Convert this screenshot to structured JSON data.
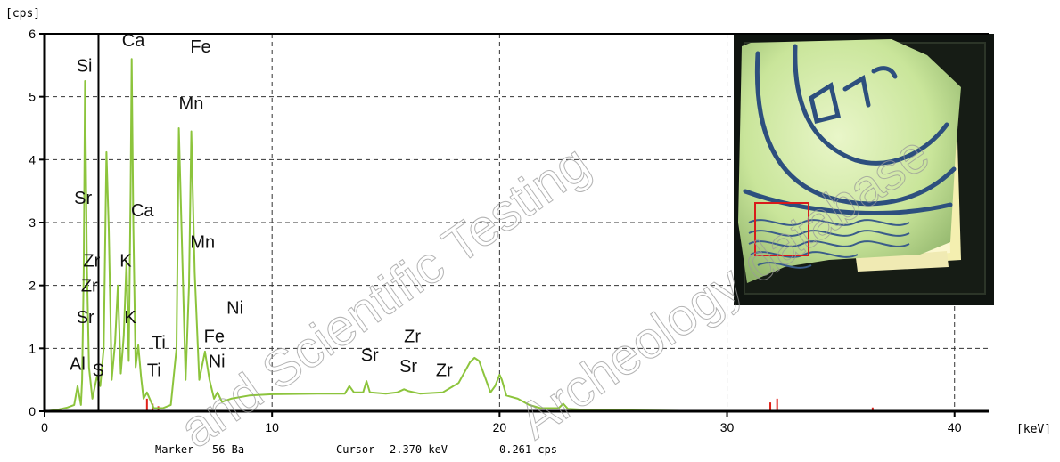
{
  "chart_data": {
    "type": "line",
    "xlabel": "[keV]",
    "ylabel": "[cps]",
    "xlim": [
      0,
      41.5
    ],
    "ylim": [
      0,
      6
    ],
    "x_ticks": [
      "0",
      "10",
      "20",
      "30",
      "40"
    ],
    "y_ticks": [
      "0",
      "1",
      "2",
      "3",
      "4",
      "5",
      "6"
    ],
    "grid": true,
    "series": [
      {
        "color": "#8cc43c",
        "points": [
          [
            0.0,
            0.0
          ],
          [
            0.5,
            0.02
          ],
          [
            1.0,
            0.06
          ],
          [
            1.3,
            0.1
          ],
          [
            1.45,
            0.4
          ],
          [
            1.6,
            0.1
          ],
          [
            1.65,
            0.5
          ],
          [
            1.72,
            2.2
          ],
          [
            1.78,
            5.25
          ],
          [
            1.86,
            2.3
          ],
          [
            1.95,
            0.7
          ],
          [
            2.1,
            0.2
          ],
          [
            2.3,
            0.55
          ],
          [
            2.45,
            0.4
          ],
          [
            2.6,
            1.0
          ],
          [
            2.72,
            4.12
          ],
          [
            2.82,
            2.9
          ],
          [
            2.95,
            0.5
          ],
          [
            3.1,
            1.1
          ],
          [
            3.22,
            2.0
          ],
          [
            3.35,
            0.6
          ],
          [
            3.48,
            1.2
          ],
          [
            3.6,
            2.4
          ],
          [
            3.7,
            0.8
          ],
          [
            3.78,
            3.5
          ],
          [
            3.83,
            5.6
          ],
          [
            3.9,
            3.0
          ],
          [
            4.0,
            0.7
          ],
          [
            4.12,
            1.05
          ],
          [
            4.24,
            0.55
          ],
          [
            4.35,
            0.2
          ],
          [
            4.5,
            0.3
          ],
          [
            4.8,
            0.05
          ],
          [
            5.2,
            0.05
          ],
          [
            5.55,
            0.1
          ],
          [
            5.8,
            1.0
          ],
          [
            5.9,
            4.5
          ],
          [
            6.05,
            2.5
          ],
          [
            6.2,
            0.5
          ],
          [
            6.35,
            2.0
          ],
          [
            6.45,
            4.45
          ],
          [
            6.6,
            2.2
          ],
          [
            6.8,
            0.5
          ],
          [
            7.05,
            0.95
          ],
          [
            7.25,
            0.5
          ],
          [
            7.45,
            0.2
          ],
          [
            7.6,
            0.3
          ],
          [
            7.8,
            0.15
          ],
          [
            8.2,
            0.2
          ],
          [
            9.0,
            0.25
          ],
          [
            10.0,
            0.27
          ],
          [
            12.0,
            0.28
          ],
          [
            13.2,
            0.28
          ],
          [
            13.4,
            0.4
          ],
          [
            13.6,
            0.3
          ],
          [
            14.0,
            0.3
          ],
          [
            14.15,
            0.48
          ],
          [
            14.3,
            0.3
          ],
          [
            15.0,
            0.28
          ],
          [
            15.5,
            0.3
          ],
          [
            15.8,
            0.35
          ],
          [
            16.0,
            0.32
          ],
          [
            16.5,
            0.28
          ],
          [
            17.5,
            0.3
          ],
          [
            18.2,
            0.45
          ],
          [
            18.7,
            0.78
          ],
          [
            18.9,
            0.85
          ],
          [
            19.1,
            0.8
          ],
          [
            19.4,
            0.5
          ],
          [
            19.6,
            0.3
          ],
          [
            19.8,
            0.4
          ],
          [
            20.0,
            0.58
          ],
          [
            20.1,
            0.5
          ],
          [
            20.3,
            0.25
          ],
          [
            20.8,
            0.2
          ],
          [
            21.3,
            0.1
          ],
          [
            21.8,
            0.05
          ],
          [
            22.6,
            0.05
          ],
          [
            22.8,
            0.12
          ],
          [
            23.0,
            0.04
          ],
          [
            24.0,
            0.02
          ],
          [
            27.0,
            0.01
          ],
          [
            30.0,
            0.0
          ],
          [
            34.0,
            0.0
          ],
          [
            41.5,
            0.0
          ]
        ]
      }
    ],
    "element_labels": [
      {
        "text": "Si",
        "x": 1.4,
        "y": 5.4
      },
      {
        "text": "Ca",
        "x": 3.4,
        "y": 5.8
      },
      {
        "text": "Fe",
        "x": 6.4,
        "y": 5.7
      },
      {
        "text": "Mn",
        "x": 5.9,
        "y": 4.8
      },
      {
        "text": "Sr",
        "x": 1.3,
        "y": 3.3
      },
      {
        "text": "Ca",
        "x": 3.8,
        "y": 3.1
      },
      {
        "text": "Mn",
        "x": 6.4,
        "y": 2.6
      },
      {
        "text": "Zr",
        "x": 1.7,
        "y": 2.3
      },
      {
        "text": "K",
        "x": 3.3,
        "y": 2.3
      },
      {
        "text": "Zr",
        "x": 1.6,
        "y": 1.9
      },
      {
        "text": "Ni",
        "x": 8.0,
        "y": 1.55
      },
      {
        "text": "Sr",
        "x": 1.4,
        "y": 1.4
      },
      {
        "text": "K",
        "x": 3.5,
        "y": 1.4
      },
      {
        "text": "Ti",
        "x": 4.7,
        "y": 1.0
      },
      {
        "text": "Fe",
        "x": 7.0,
        "y": 1.1
      },
      {
        "text": "Zr",
        "x": 15.8,
        "y": 1.1
      },
      {
        "text": "Sr",
        "x": 13.9,
        "y": 0.8
      },
      {
        "text": "Ni",
        "x": 7.2,
        "y": 0.7
      },
      {
        "text": "Al",
        "x": 1.1,
        "y": 0.66
      },
      {
        "text": "S",
        "x": 2.1,
        "y": 0.56
      },
      {
        "text": "Ti",
        "x": 4.5,
        "y": 0.56
      },
      {
        "text": "Sr",
        "x": 15.6,
        "y": 0.62
      },
      {
        "text": "Zr",
        "x": 17.2,
        "y": 0.56
      }
    ],
    "markers": [
      {
        "x": 4.5,
        "y": 0.2
      },
      {
        "x": 4.75,
        "y": 0.12
      },
      {
        "x": 5.0,
        "y": 0.08
      },
      {
        "x": 31.9,
        "y": 0.14
      },
      {
        "x": 32.2,
        "y": 0.2
      },
      {
        "x": 36.4,
        "y": 0.06
      }
    ],
    "cursor_x": 2.37
  },
  "status": {
    "marker_label": "Marker",
    "marker_value": "56 Ba",
    "cursor_label": "Cursor",
    "cursor_kev": "2.370 keV",
    "cursor_cps": "0.261 cps"
  },
  "watermark": {
    "line1": "and Scientific Testing",
    "line2": "Archeology database"
  },
  "colors": {
    "spectrum": "#8cc43c",
    "marker": "#e0221b",
    "grid": "#333333",
    "inset_frame": "#d81b1b"
  }
}
